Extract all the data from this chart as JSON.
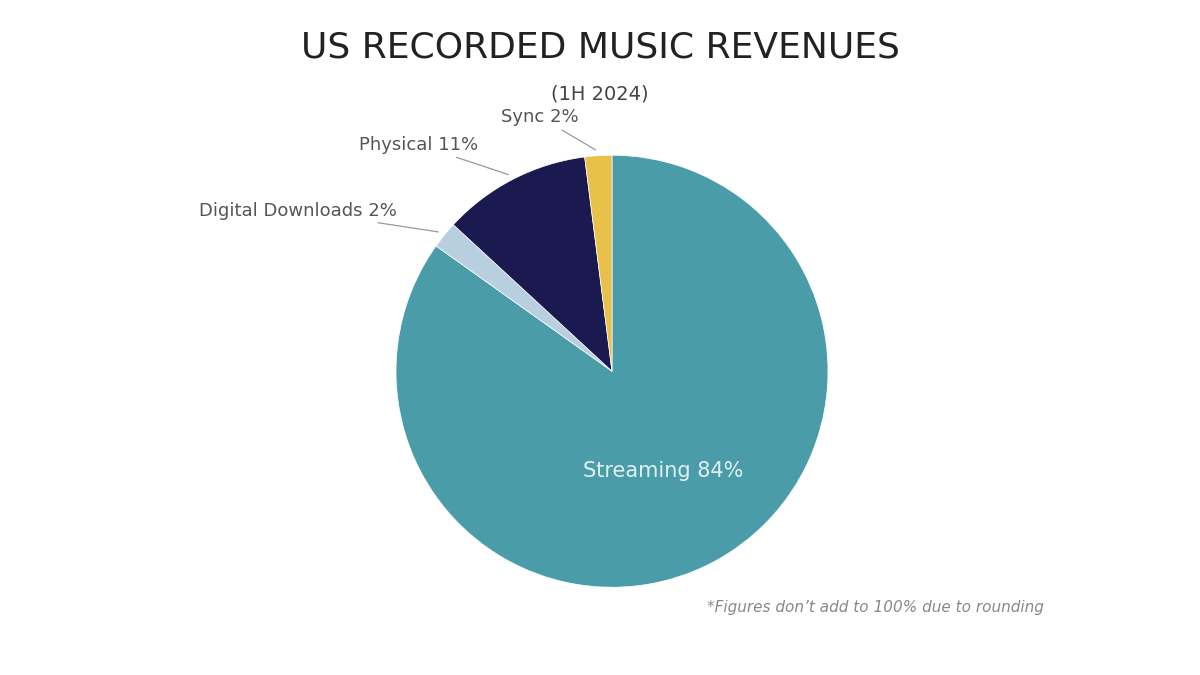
{
  "title": "US RECORDED MUSIC REVENUES",
  "subtitle": "(1H 2024)",
  "slices": [
    {
      "label": "Streaming",
      "pct": 84,
      "color": "#4a9da8",
      "label_inside": true
    },
    {
      "label": "Digital Downloads",
      "pct": 2,
      "color": "#b8cfe0",
      "label_inside": false
    },
    {
      "label": "Physical",
      "pct": 11,
      "color": "#1a1a50",
      "label_inside": false
    },
    {
      "label": "Sync",
      "pct": 2,
      "color": "#e8c14a",
      "label_inside": false
    }
  ],
  "note": "*Figures don’t add to 100% due to rounding",
  "background_color": "#ffffff",
  "title_fontsize": 26,
  "subtitle_fontsize": 14,
  "label_fontsize": 13,
  "inside_label_fontsize": 15,
  "note_fontsize": 11,
  "title_color": "#222222",
  "subtitle_color": "#444444",
  "label_color": "#555555",
  "inside_label_color": "#e0f0f0",
  "note_color": "#888888"
}
